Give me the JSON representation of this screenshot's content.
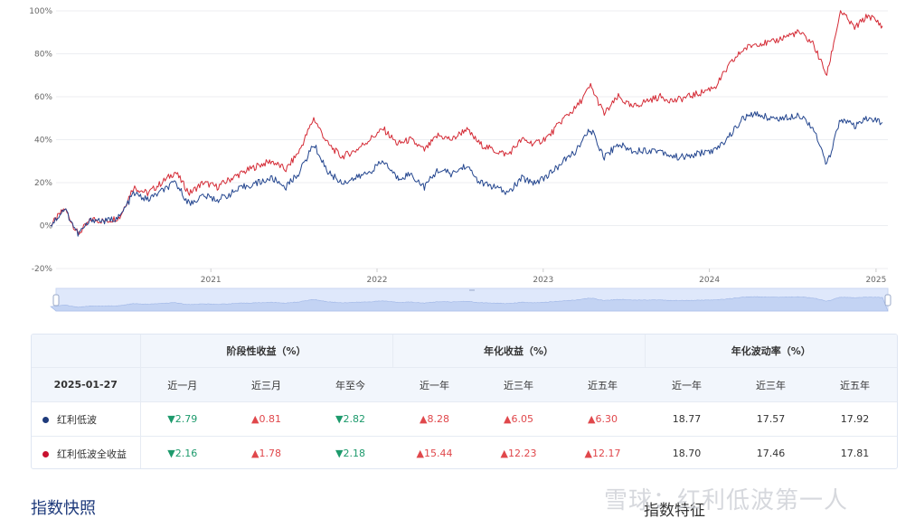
{
  "chart_data": {
    "type": "line",
    "y_ticks": [
      "100%",
      "80%",
      "60%",
      "40%",
      "20%",
      "0%",
      "-20%"
    ],
    "y_values": [
      100,
      80,
      60,
      40,
      20,
      0,
      -20
    ],
    "ylim": [
      -20,
      100
    ],
    "x_ticks": [
      "2021",
      "2022",
      "2023",
      "2024",
      "2025"
    ],
    "xlim": [
      "2020-01-27",
      "2025-01-27"
    ],
    "grid": true,
    "series": [
      {
        "name": "红利低波全收益",
        "color": "#d42a35",
        "x": [
          "2020-01",
          "2020-02",
          "2020-03",
          "2020-04",
          "2020-05",
          "2020-06",
          "2020-07",
          "2020-08",
          "2020-09",
          "2020-10",
          "2020-11",
          "2020-12",
          "2021-01",
          "2021-02",
          "2021-03",
          "2021-04",
          "2021-05",
          "2021-06",
          "2021-07",
          "2021-08",
          "2021-09",
          "2021-10",
          "2021-11",
          "2021-12",
          "2022-01",
          "2022-02",
          "2022-03",
          "2022-04",
          "2022-05",
          "2022-06",
          "2022-07",
          "2022-08",
          "2022-09",
          "2022-10",
          "2022-11",
          "2022-12",
          "2023-01",
          "2023-02",
          "2023-03",
          "2023-04",
          "2023-05",
          "2023-06",
          "2023-07",
          "2023-08",
          "2023-09",
          "2023-10",
          "2023-11",
          "2023-12",
          "2024-01",
          "2024-02",
          "2024-03",
          "2024-04",
          "2024-05",
          "2024-06",
          "2024-07",
          "2024-08",
          "2024-09",
          "2024-10",
          "2024-11",
          "2024-12",
          "2025-01"
        ],
        "values": [
          0,
          8,
          -4,
          3,
          2,
          4,
          18,
          15,
          20,
          25,
          15,
          20,
          18,
          22,
          25,
          28,
          30,
          26,
          35,
          50,
          38,
          32,
          35,
          40,
          45,
          38,
          40,
          35,
          42,
          40,
          45,
          38,
          35,
          33,
          40,
          38,
          42,
          50,
          55,
          65,
          52,
          60,
          55,
          58,
          60,
          58,
          60,
          62,
          65,
          75,
          82,
          85,
          85,
          88,
          90,
          85,
          70,
          100,
          92,
          98,
          93
        ]
      },
      {
        "name": "红利低波",
        "color": "#24468f",
        "x": [
          "2020-01",
          "2020-02",
          "2020-03",
          "2020-04",
          "2020-05",
          "2020-06",
          "2020-07",
          "2020-08",
          "2020-09",
          "2020-10",
          "2020-11",
          "2020-12",
          "2021-01",
          "2021-02",
          "2021-03",
          "2021-04",
          "2021-05",
          "2021-06",
          "2021-07",
          "2021-08",
          "2021-09",
          "2021-10",
          "2021-11",
          "2021-12",
          "2022-01",
          "2022-02",
          "2022-03",
          "2022-04",
          "2022-05",
          "2022-06",
          "2022-07",
          "2022-08",
          "2022-09",
          "2022-10",
          "2022-11",
          "2022-12",
          "2023-01",
          "2023-02",
          "2023-03",
          "2023-04",
          "2023-05",
          "2023-06",
          "2023-07",
          "2023-08",
          "2023-09",
          "2023-10",
          "2023-11",
          "2023-12",
          "2024-01",
          "2024-02",
          "2024-03",
          "2024-04",
          "2024-05",
          "2024-06",
          "2024-07",
          "2024-08",
          "2024-09",
          "2024-10",
          "2024-11",
          "2024-12",
          "2025-01"
        ],
        "values": [
          0,
          8,
          -4,
          3,
          2,
          4,
          15,
          12,
          16,
          20,
          10,
          14,
          12,
          15,
          18,
          20,
          22,
          18,
          25,
          38,
          25,
          20,
          22,
          25,
          30,
          22,
          24,
          18,
          26,
          24,
          28,
          20,
          18,
          15,
          22,
          20,
          24,
          30,
          35,
          45,
          32,
          38,
          35,
          35,
          35,
          32,
          32,
          34,
          35,
          42,
          50,
          52,
          50,
          50,
          52,
          46,
          28,
          50,
          46,
          50,
          48
        ]
      }
    ]
  },
  "table": {
    "date": "2025-01-27",
    "group_headers": [
      "阶段性收益（%）",
      "年化收益（%）",
      "年化波动率（%）"
    ],
    "sub_headers": [
      "近一月",
      "近三月",
      "年至今",
      "近一年",
      "近三年",
      "近五年",
      "近一年",
      "近三年",
      "近五年"
    ],
    "rows": [
      {
        "name": "红利低波",
        "dot_color": "#1e3a7b",
        "cells": [
          {
            "text": "▼2.79",
            "dir": "down"
          },
          {
            "text": "▲0.81",
            "dir": "up"
          },
          {
            "text": "▼2.82",
            "dir": "down"
          },
          {
            "text": "▲8.28",
            "dir": "up"
          },
          {
            "text": "▲6.05",
            "dir": "up"
          },
          {
            "text": "▲6.30",
            "dir": "up"
          },
          {
            "text": "18.77",
            "dir": "neutral"
          },
          {
            "text": "17.57",
            "dir": "neutral"
          },
          {
            "text": "17.92",
            "dir": "neutral"
          }
        ]
      },
      {
        "name": "红利低波全收益",
        "dot_color": "#c8102e",
        "cells": [
          {
            "text": "▼2.16",
            "dir": "down"
          },
          {
            "text": "▲1.78",
            "dir": "up"
          },
          {
            "text": "▼2.18",
            "dir": "down"
          },
          {
            "text": "▲15.44",
            "dir": "up"
          },
          {
            "text": "▲12.23",
            "dir": "up"
          },
          {
            "text": "▲12.17",
            "dir": "up"
          },
          {
            "text": "18.70",
            "dir": "neutral"
          },
          {
            "text": "17.46",
            "dir": "neutral"
          },
          {
            "text": "17.81",
            "dir": "neutral"
          }
        ]
      }
    ]
  },
  "section_title": "指数快照",
  "section_title2": "指数特征",
  "watermark": "雪球：红利低波第一人"
}
